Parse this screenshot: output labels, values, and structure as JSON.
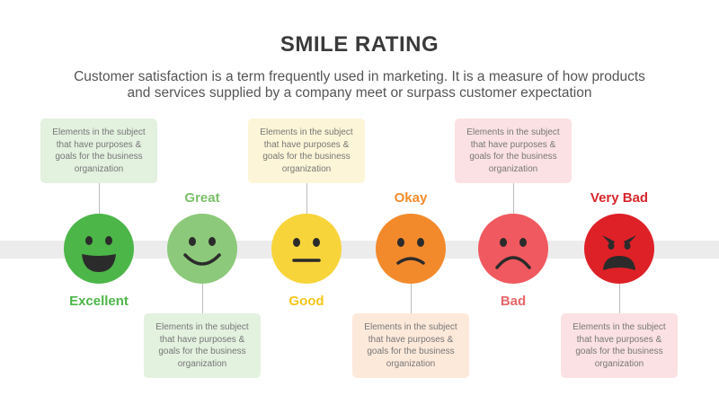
{
  "header": {
    "title": "SMILE RATING",
    "subtitle_line1": "Customer satisfaction is a term frequently used in marketing. It is a measure of how products",
    "subtitle_line2": "and services supplied by a company meet or surpass customer expectation"
  },
  "box_text": {
    "line1": "Elements in the subject",
    "line2": "that have purposes &",
    "line3": "goals for the business",
    "line4": "organization"
  },
  "ratings": [
    {
      "label": "Excellent",
      "color": "#4cb648",
      "icon": "excellent-face-icon"
    },
    {
      "label": "Great",
      "color": "#8cc97a",
      "icon": "great-face-icon"
    },
    {
      "label": "Good",
      "color": "#f7d43a",
      "icon": "good-face-icon"
    },
    {
      "label": "Okay",
      "color": "#f28a2c",
      "icon": "okay-face-icon"
    },
    {
      "label": "Bad",
      "color": "#f0595f",
      "icon": "bad-face-icon"
    },
    {
      "label": "Very Bad",
      "color": "#de2027",
      "icon": "very-bad-face-icon"
    }
  ],
  "label_colors": {
    "excellent": "#4cb648",
    "great": "#7bbf6a",
    "good": "#f5c518",
    "okay": "#f28a2c",
    "bad": "#e8656a",
    "very_bad": "#d8262c"
  }
}
